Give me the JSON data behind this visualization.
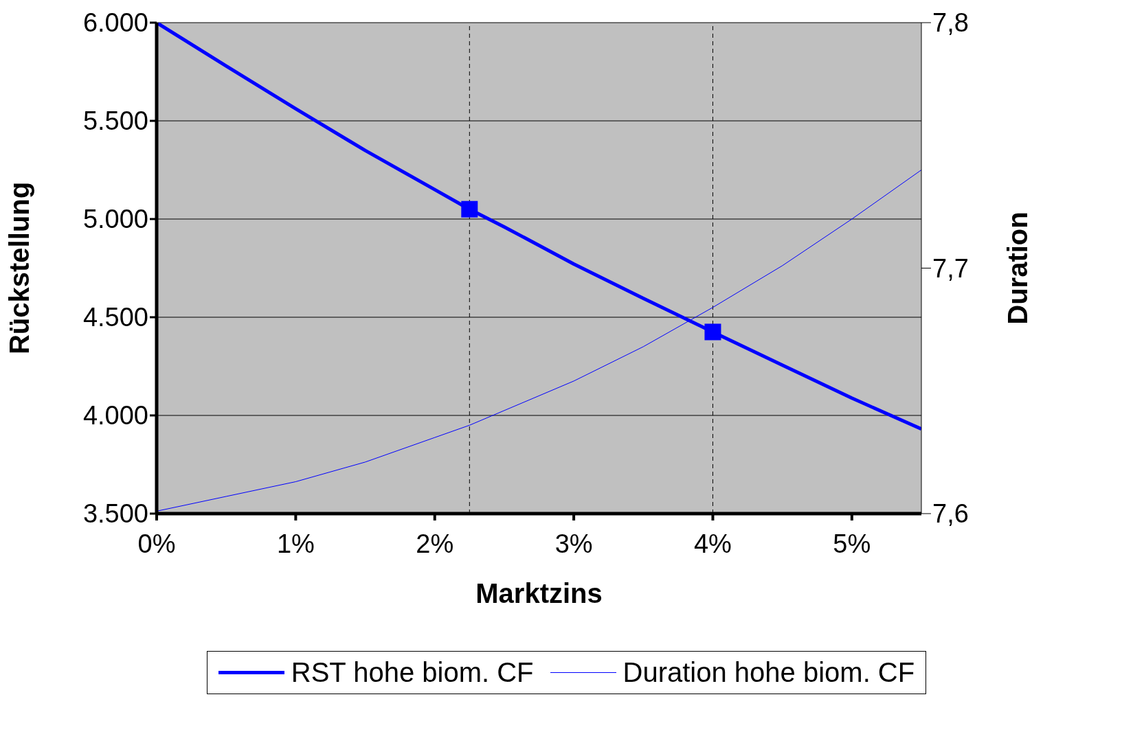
{
  "chart_data": {
    "type": "line",
    "xlabel": "Marktzins",
    "ylabel": "Rückstellung",
    "y2label": "Duration",
    "xlim": [
      0,
      5.5
    ],
    "xticks": [
      {
        "value": 0,
        "label": "0%"
      },
      {
        "value": 1,
        "label": "1%"
      },
      {
        "value": 2,
        "label": "2%"
      },
      {
        "value": 3,
        "label": "3%"
      },
      {
        "value": 4,
        "label": "4%"
      },
      {
        "value": 5,
        "label": "5%"
      }
    ],
    "ylim": [
      3500,
      6000
    ],
    "yticks": [
      {
        "value": 3500,
        "label": "3.500"
      },
      {
        "value": 4000,
        "label": "4.000"
      },
      {
        "value": 4500,
        "label": "4.500"
      },
      {
        "value": 5000,
        "label": "5.000"
      },
      {
        "value": 5500,
        "label": "5.500"
      },
      {
        "value": 6000,
        "label": "6.000"
      }
    ],
    "y2lim": [
      7.6,
      7.8
    ],
    "y2ticks": [
      {
        "value": 7.6,
        "label": "7,6"
      },
      {
        "value": 7.7,
        "label": "7,7"
      },
      {
        "value": 7.8,
        "label": "7,8"
      }
    ],
    "grid": "y",
    "legend": "bottom",
    "marker": "none",
    "line_style": "solid",
    "x": [
      0,
      0.5,
      1,
      1.5,
      2,
      2.25,
      2.5,
      3,
      3.5,
      4,
      4.5,
      5,
      5.5
    ],
    "series": [
      {
        "name": "RST hohe biom. CF",
        "color": "#0000ff",
        "values": [
          6000,
          5779,
          5562,
          5349,
          5150,
          5050,
          4960,
          4771,
          4596,
          4425,
          4256,
          4088,
          3931
        ]
      },
      {
        "name": "Duration hohe biom. CF",
        "color": "#0000ff",
        "axis": "y2",
        "values": [
          7.601,
          7.607,
          7.613,
          7.621,
          7.631,
          7.636,
          7.642,
          7.654,
          7.668,
          7.684,
          7.701,
          7.72,
          7.74
        ]
      },
      {
        "type": "scatter",
        "marker": "square",
        "color": "#0000ff",
        "x": [
          2.25,
          4
        ],
        "values": [
          5050,
          4425
        ]
      }
    ],
    "ref_lines": [
      {
        "axis": "x",
        "value": 2.25,
        "color": "#000000",
        "line_style": "dashed"
      },
      {
        "axis": "x",
        "value": 4,
        "color": "#000000",
        "line_style": "dashed"
      }
    ]
  }
}
